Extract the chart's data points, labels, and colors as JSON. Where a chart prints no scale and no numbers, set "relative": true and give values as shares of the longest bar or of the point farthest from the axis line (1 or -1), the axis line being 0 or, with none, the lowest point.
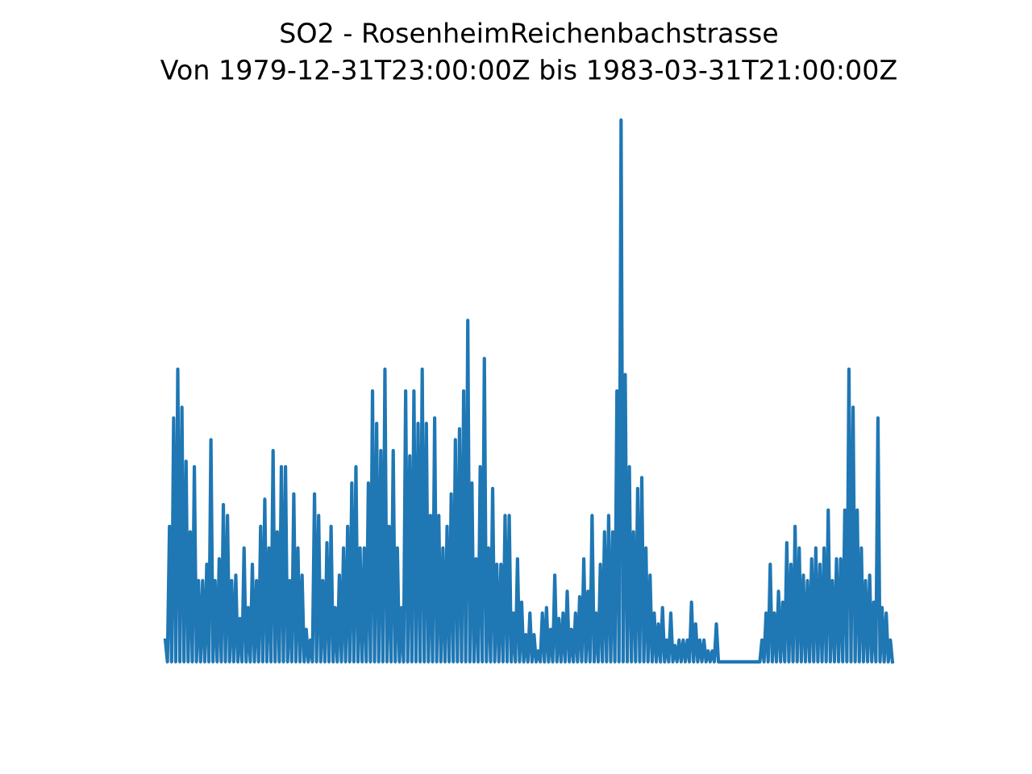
{
  "chart_data": {
    "type": "line",
    "relative": true,
    "title": "SO2 - RosenheimReichenbachstrasse",
    "subtitle": "Von 1979-12-31T23:00:00Z bis 1983-03-31T21:00:00Z",
    "series": [
      {
        "color": "#1f77b4",
        "values": [
          0.04,
          0,
          0.25,
          0,
          0.45,
          0,
          0.54,
          0,
          0.47,
          0,
          0.37,
          0,
          0.24,
          0,
          0.36,
          0,
          0.15,
          0,
          0.15,
          0,
          0.18,
          0,
          0.41,
          0,
          0.15,
          0,
          0.19,
          0,
          0.29,
          0,
          0.27,
          0,
          0.15,
          0,
          0.16,
          0,
          0.08,
          0,
          0.21,
          0,
          0.1,
          0,
          0.18,
          0,
          0.15,
          0,
          0.25,
          0,
          0.3,
          0,
          0.21,
          0,
          0.39,
          0,
          0.24,
          0,
          0.36,
          0,
          0.36,
          0,
          0.15,
          0,
          0.31,
          0,
          0.21,
          0,
          0.16,
          0,
          0.06,
          0,
          0.04,
          0,
          0.31,
          0,
          0.27,
          0,
          0.15,
          0,
          0.22,
          0,
          0.25,
          0,
          0.1,
          0,
          0.16,
          0,
          0.21,
          0,
          0.25,
          0,
          0.33,
          0,
          0.36,
          0,
          0.21,
          0,
          0.21,
          0,
          0.33,
          0,
          0.5,
          0,
          0.44,
          0,
          0.39,
          0,
          0.54,
          0,
          0.25,
          0,
          0.39,
          0,
          0.21,
          0,
          0.1,
          0,
          0.5,
          0,
          0.38,
          0,
          0.5,
          0,
          0.44,
          0,
          0.54,
          0,
          0.44,
          0,
          0.27,
          0,
          0.45,
          0,
          0.27,
          0,
          0.21,
          0,
          0.25,
          0,
          0.31,
          0,
          0.41,
          0,
          0.43,
          0,
          0.5,
          0,
          0.63,
          0,
          0.33,
          0,
          0.19,
          0,
          0.36,
          0,
          0.56,
          0,
          0.21,
          0,
          0.32,
          0,
          0.18,
          0,
          0.18,
          0,
          0.27,
          0,
          0.27,
          0,
          0.09,
          0,
          0.19,
          0,
          0.11,
          0,
          0.05,
          0,
          0.09,
          0,
          0.05,
          0,
          0.02,
          0,
          0.09,
          0,
          0.1,
          0,
          0.06,
          0,
          0.16,
          0,
          0.08,
          0,
          0.09,
          0,
          0.13,
          0,
          0.06,
          0,
          0.09,
          0,
          0.12,
          0,
          0.19,
          0,
          0.13,
          0,
          0.27,
          0,
          0.09,
          0,
          0.18,
          0,
          0.24,
          0,
          0.27,
          0,
          0.24,
          0,
          0.5,
          0,
          1.0,
          0,
          0.53,
          0,
          0.36,
          0,
          0.24,
          0,
          0.32,
          0,
          0.34,
          0,
          0.21,
          0,
          0.16,
          0,
          0.09,
          0,
          0.07,
          0,
          0.1,
          0,
          0.04,
          0,
          0.09,
          0,
          0.03,
          0,
          0.04,
          0,
          0.04,
          0,
          0.04,
          0,
          0.11,
          0,
          0.07,
          0,
          0.04,
          0,
          0.04,
          0,
          0.02,
          0,
          0.02,
          0,
          0.07,
          0,
          0,
          0,
          0,
          0,
          0,
          0,
          0,
          0,
          0,
          0,
          0,
          0,
          0,
          0,
          0,
          0,
          0,
          0,
          0,
          0,
          0.04,
          0,
          0.09,
          0,
          0.18,
          0,
          0.09,
          0,
          0.13,
          0,
          0.11,
          0,
          0.22,
          0,
          0.18,
          0,
          0.25,
          0,
          0.21,
          0,
          0.16,
          0,
          0.15,
          0,
          0.19,
          0,
          0.21,
          0,
          0.18,
          0,
          0.21,
          0,
          0.28,
          0,
          0.15,
          0,
          0.19,
          0,
          0.19,
          0,
          0.28,
          0,
          0.54,
          0,
          0.47,
          0,
          0.28,
          0,
          0.21,
          0,
          0.15,
          0,
          0.16,
          0,
          0.11,
          0,
          0.45,
          0,
          0.1,
          0,
          0.09,
          0,
          0.04,
          0
        ]
      }
    ],
    "categories": [
      null,
      null,
      null,
      null,
      null,
      null,
      null,
      null,
      null,
      null,
      null,
      null,
      null,
      null,
      null,
      null,
      null,
      null,
      null,
      null,
      null,
      null,
      null,
      null,
      null,
      null,
      null,
      null,
      null,
      null,
      null,
      null,
      null,
      null,
      null,
      null,
      null,
      null,
      null,
      null,
      null,
      null,
      null,
      null,
      null,
      null,
      null,
      null,
      null,
      null,
      null,
      null,
      null,
      null,
      null,
      null,
      null,
      null,
      null,
      null,
      null,
      null,
      null,
      null,
      null,
      null,
      null,
      null,
      null,
      null,
      null,
      null,
      null,
      null,
      null,
      null,
      null,
      null,
      null,
      null,
      null,
      null,
      null,
      null,
      null,
      null,
      null,
      null,
      null,
      null,
      null,
      null,
      null,
      null,
      null,
      null,
      null,
      null,
      null,
      null,
      null,
      null,
      null,
      null,
      null,
      null,
      null,
      null,
      null,
      null,
      null,
      null,
      null,
      null,
      null,
      null,
      null,
      null,
      null,
      null,
      null,
      null,
      null,
      null,
      null,
      null,
      null,
      null,
      null,
      null,
      null,
      null,
      null,
      null,
      null,
      null,
      null,
      null,
      null,
      null,
      null,
      null,
      null,
      null,
      null,
      null,
      null,
      null,
      null,
      null,
      null,
      null,
      null,
      null,
      null,
      null,
      null,
      null,
      null,
      null,
      null,
      null,
      null,
      null,
      null,
      null,
      null,
      null,
      null,
      null,
      null,
      null,
      null,
      null,
      null,
      null,
      null,
      null,
      null,
      null,
      null,
      null,
      null,
      null,
      null,
      null,
      null,
      null,
      null,
      null,
      null,
      null,
      null,
      null,
      null,
      null,
      null,
      null,
      null,
      null,
      null,
      null,
      null,
      null,
      null,
      null,
      null,
      null,
      null,
      null,
      null,
      null,
      null,
      null,
      null,
      null,
      null,
      null,
      null,
      null,
      null,
      null,
      null,
      null,
      null,
      null,
      null,
      null,
      null,
      null,
      null,
      null,
      null,
      null,
      null,
      null,
      null,
      null,
      null,
      null,
      null,
      null,
      null,
      null,
      null,
      null,
      null,
      null,
      null,
      null,
      null,
      null,
      null,
      null,
      null,
      null,
      null,
      null,
      null,
      null,
      null,
      null,
      null,
      null,
      null,
      null,
      null,
      null,
      null,
      null,
      null,
      null,
      null,
      null,
      null,
      null,
      null,
      null,
      null,
      null,
      null,
      null,
      null,
      null,
      null,
      null,
      null,
      null,
      null,
      null,
      null,
      null,
      null,
      null,
      null,
      null,
      null,
      null,
      null,
      null,
      null,
      null,
      null,
      null,
      null,
      null,
      null,
      null,
      null,
      null,
      null,
      null,
      null,
      null,
      null,
      null,
      null,
      null,
      null,
      null,
      null,
      null,
      null,
      null,
      null,
      null,
      null,
      null,
      null,
      null,
      null,
      null,
      null,
      null,
      null,
      null,
      null,
      null,
      null,
      null,
      null,
      null,
      null,
      null,
      null,
      null,
      null,
      null,
      null,
      null,
      null,
      null
    ]
  }
}
